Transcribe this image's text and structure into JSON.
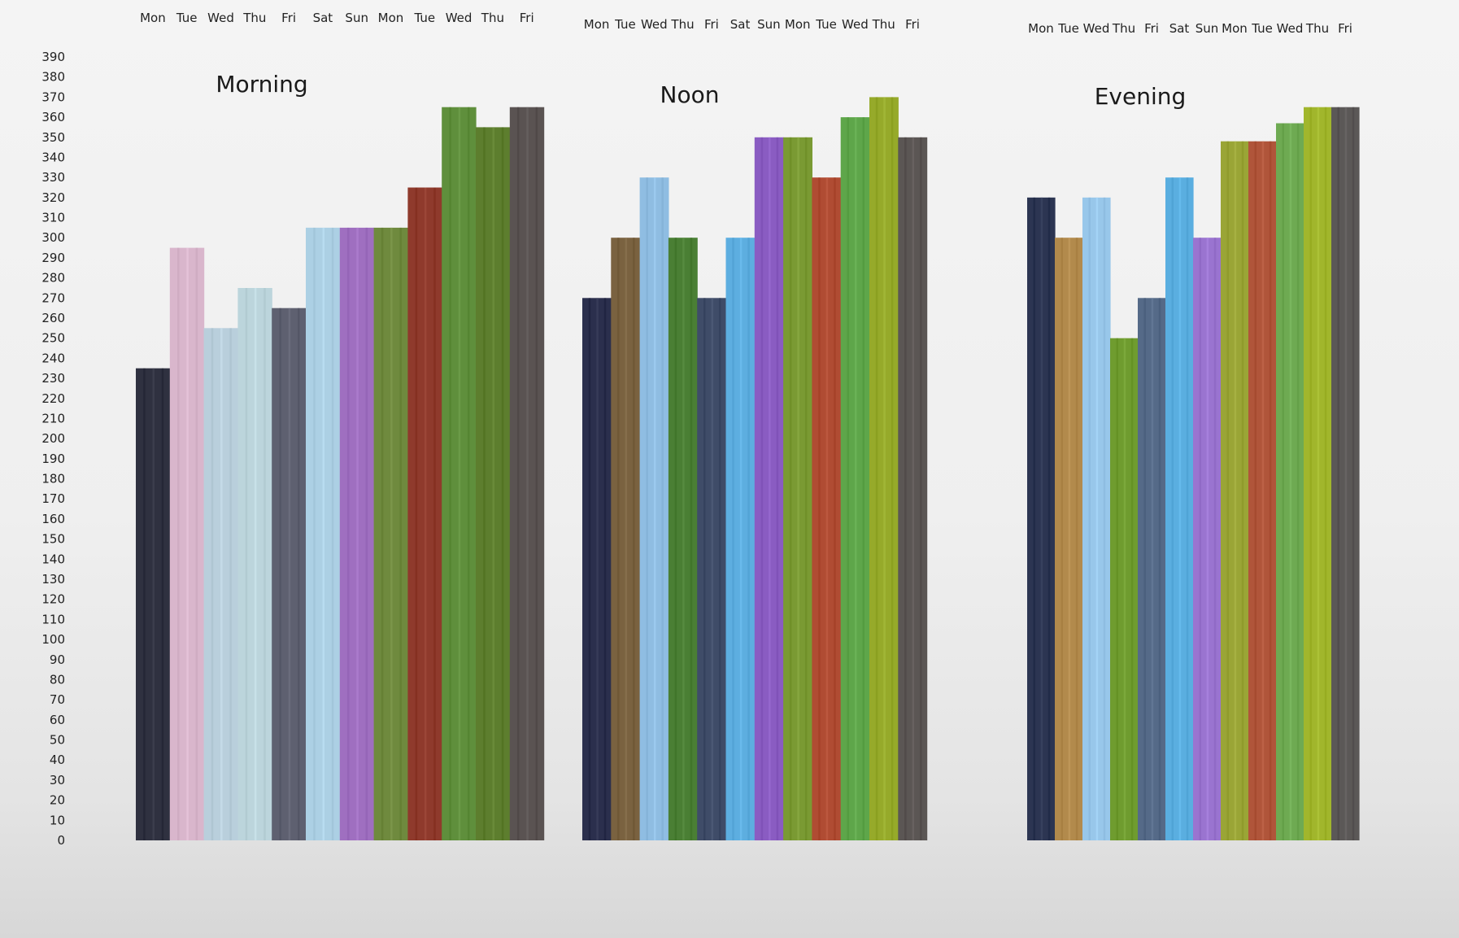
{
  "chart_data": {
    "type": "bar",
    "layout": "three side-by-side panels sharing one y-axis",
    "grid": false,
    "legend": "none",
    "ylim": [
      0,
      390
    ],
    "yticks": [
      0,
      10,
      20,
      30,
      40,
      50,
      60,
      70,
      80,
      90,
      100,
      110,
      120,
      130,
      140,
      150,
      160,
      170,
      180,
      190,
      200,
      210,
      220,
      230,
      240,
      250,
      260,
      270,
      280,
      290,
      300,
      310,
      320,
      330,
      340,
      350,
      360,
      370,
      380,
      390
    ],
    "categories": [
      "Mon",
      "Tue",
      "Wed",
      "Thu",
      "Fri",
      "Sat",
      "Sun",
      "Mon",
      "Tue",
      "Wed",
      "Thu",
      "Fri"
    ],
    "colors": [
      "#2f3140",
      "#d9b6cc",
      "#b9cfdc",
      "#bcd5dc",
      "#5e6070",
      "#acd0e4",
      "#9f6fc0",
      "#6f8a3e",
      "#8f3a2c",
      "#5f8f3c",
      "#5d7e2e",
      "#5a5352"
    ],
    "panels": [
      {
        "title": "Morning",
        "values": [
          235,
          295,
          255,
          275,
          265,
          305,
          305,
          305,
          325,
          365,
          355,
          365
        ],
        "colors": [
          "#2f3140",
          "#d9b6cc",
          "#b9cfdc",
          "#bcd5dc",
          "#5e6070",
          "#acd0e4",
          "#9f6fc0",
          "#6f8a3e",
          "#8f3a2c",
          "#5f8f3c",
          "#5d7e2e",
          "#5a5352"
        ]
      },
      {
        "title": "Noon",
        "values": [
          270,
          300,
          330,
          300,
          270,
          300,
          350,
          350,
          330,
          360,
          370,
          350
        ],
        "colors": [
          "#2b2f4d",
          "#7a6240",
          "#8fbde2",
          "#4a7f34",
          "#3f4c68",
          "#5daee0",
          "#8a5cc2",
          "#7a9a33",
          "#b04c33",
          "#5ea64a",
          "#96aa2a",
          "#5b5654"
        ]
      },
      {
        "title": "Evening",
        "values": [
          320,
          300,
          320,
          250,
          270,
          330,
          300,
          348,
          348,
          357,
          365,
          365
        ],
        "colors": [
          "#2c3552",
          "#b28a4c",
          "#98c7ea",
          "#6f9c2f",
          "#556a88",
          "#5aaee0",
          "#9a74d0",
          "#9aa536",
          "#b0553a",
          "#6eaa52",
          "#a1b62c",
          "#5b5857"
        ]
      }
    ]
  }
}
